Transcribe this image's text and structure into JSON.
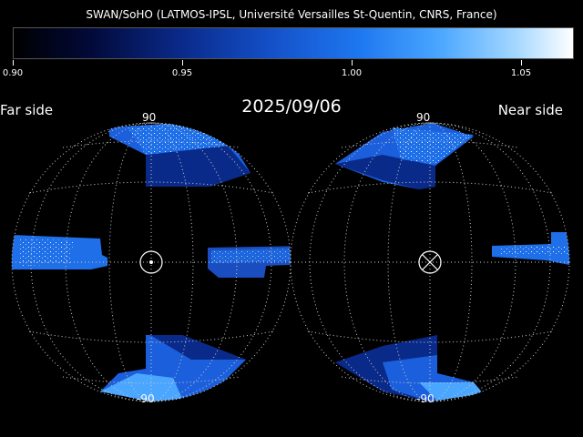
{
  "title": "SWAN/SoHO (LATMOS-IPSL, Université Versailles St-Quentin, CNRS, France)",
  "colorbar": {
    "ticks": [
      "0.90",
      "0.95",
      "1.00",
      "1.05"
    ]
  },
  "date": "2025/09/06",
  "far_side": {
    "label": "Far side",
    "top_lat": "90",
    "bottom_lat": "-90",
    "center_marker": "sun-dot"
  },
  "near_side": {
    "label": "Near side",
    "top_lat": "90",
    "bottom_lat": "-90",
    "center_marker": "sun-cross"
  },
  "colors": {
    "grid": "#cccccc",
    "dark_blue": "#0a2a8a",
    "mid_blue": "#1e78f0",
    "light_blue": "#4aa6ff",
    "white": "#ffffff"
  }
}
